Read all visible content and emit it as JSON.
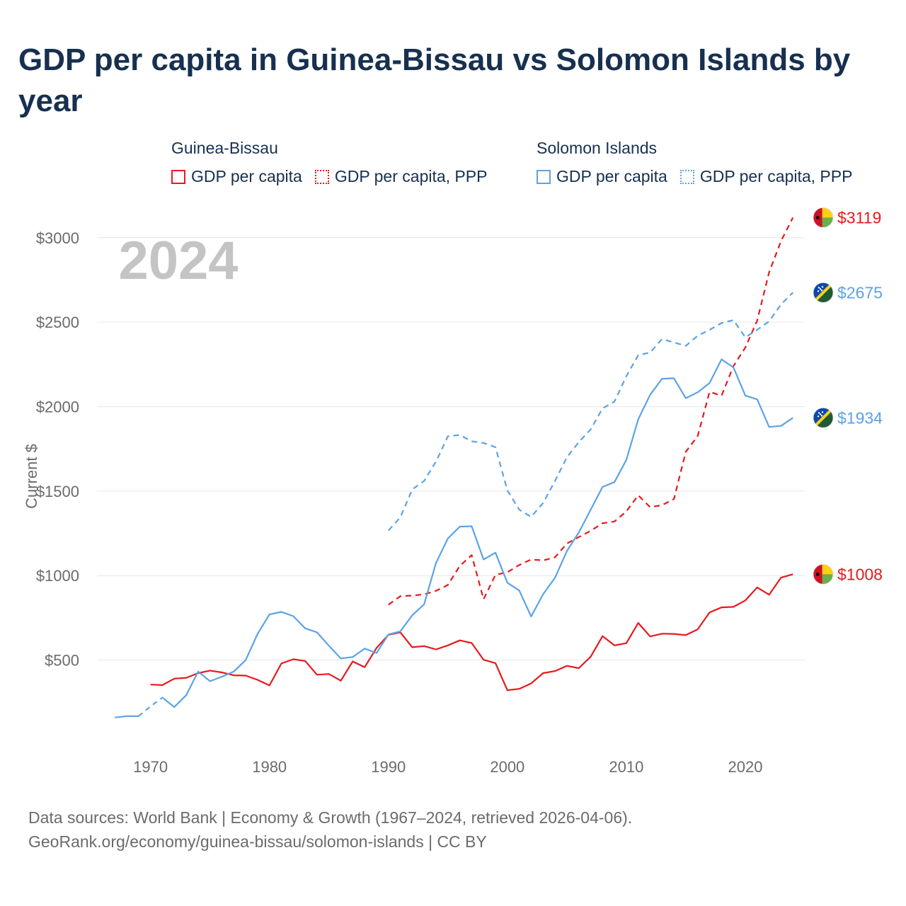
{
  "title": "GDP per capita in Guinea-Bissau vs Solomon Islands by year",
  "legend": [
    {
      "group": "Guinea-Bissau",
      "items": [
        {
          "label": "GDP per capita",
          "style": "solid",
          "color": "#e8191c"
        },
        {
          "label": "GDP per capita, PPP",
          "style": "dotted",
          "color": "#e8191c"
        }
      ]
    },
    {
      "group": "Solomon Islands",
      "items": [
        {
          "label": "GDP per capita",
          "style": "solid",
          "color": "#5ba3e6"
        },
        {
          "label": "GDP per capita, PPP",
          "style": "dotted",
          "color": "#5ba3e6"
        }
      ]
    }
  ],
  "year_label": "2024",
  "sources": {
    "line1": "Data sources: World Bank | Economy & Growth (1967–2024, retrieved 2026-04-06).",
    "line2": "GeoRank.org/economy/guinea-bissau/solomon-islands | CC BY"
  },
  "chart_data": {
    "type": "line",
    "ylabel": "Current $",
    "xlim": [
      1965.5,
      2025
    ],
    "ylim": [
      50,
      3150
    ],
    "yticks": [
      500,
      1000,
      1500,
      2000,
      2500,
      3000
    ],
    "ytick_labels": [
      "$500",
      "$1000",
      "$1500",
      "$2000",
      "$2500",
      "$3000"
    ],
    "xticks": [
      1970,
      1980,
      1990,
      2000,
      2010,
      2020
    ],
    "xtick_labels": [
      "1970",
      "1980",
      "1990",
      "2000",
      "2010",
      "2020"
    ],
    "grid": true,
    "series": [
      {
        "name": "Guinea-Bissau GDP per capita",
        "country": "Guinea-Bissau",
        "color": "#e8191c",
        "dash": "solid",
        "end_label": "$1008",
        "x": [
          1970,
          1971,
          1972,
          1973,
          1974,
          1975,
          1976,
          1977,
          1978,
          1979,
          1980,
          1981,
          1982,
          1983,
          1984,
          1985,
          1986,
          1987,
          1988,
          1989,
          1990,
          1991,
          1992,
          1993,
          1994,
          1995,
          1996,
          1997,
          1998,
          1999,
          2000,
          2001,
          2002,
          2003,
          2004,
          2005,
          2006,
          2007,
          2008,
          2009,
          2010,
          2011,
          2012,
          2013,
          2014,
          2015,
          2016,
          2017,
          2018,
          2019,
          2020,
          2021,
          2022,
          2023,
          2024
        ],
        "values": [
          355,
          352,
          390,
          395,
          423,
          438,
          427,
          410,
          408,
          383,
          350,
          480,
          505,
          495,
          413,
          418,
          378,
          492,
          458,
          572,
          650,
          664,
          576,
          583,
          563,
          587,
          617,
          601,
          502,
          482,
          322,
          330,
          362,
          423,
          435,
          466,
          452,
          520,
          642,
          587,
          600,
          720,
          640,
          656,
          655,
          648,
          682,
          782,
          812,
          815,
          853,
          930,
          887,
          988,
          1008
        ]
      },
      {
        "name": "Guinea-Bissau GDP per capita, PPP",
        "country": "Guinea-Bissau",
        "color": "#e8191c",
        "dash": "dashed",
        "end_label": "$3119",
        "x": [
          1990,
          1991,
          1992,
          1993,
          1994,
          1995,
          1996,
          1997,
          1998,
          1999,
          2000,
          2001,
          2002,
          2003,
          2004,
          2005,
          2006,
          2007,
          2008,
          2009,
          2010,
          2011,
          2012,
          2013,
          2014,
          2015,
          2016,
          2017,
          2018,
          2019,
          2020,
          2021,
          2022,
          2023,
          2024
        ],
        "values": [
          828,
          878,
          882,
          889,
          910,
          945,
          1058,
          1121,
          860,
          1005,
          1020,
          1063,
          1095,
          1090,
          1108,
          1190,
          1228,
          1265,
          1310,
          1320,
          1380,
          1475,
          1405,
          1417,
          1453,
          1733,
          1826,
          2088,
          2065,
          2240,
          2350,
          2510,
          2795,
          2980,
          3119
        ]
      },
      {
        "name": "Solomon Islands GDP per capita",
        "country": "Solomon Islands",
        "color": "#5ba3e6",
        "dash": "solid",
        "end_label": "$1934",
        "x": [
          1967,
          1968,
          1969,
          1970,
          1971,
          1972,
          1973,
          1974,
          1975,
          1976,
          1977,
          1978,
          1979,
          1980,
          1981,
          1982,
          1983,
          1984,
          1985,
          1986,
          1987,
          1988,
          1989,
          1990,
          1991,
          1992,
          1993,
          1994,
          1995,
          1996,
          1997,
          1998,
          1999,
          2000,
          2001,
          2002,
          2003,
          2004,
          2005,
          2006,
          2007,
          2008,
          2009,
          2010,
          2011,
          2012,
          2013,
          2014,
          2015,
          2016,
          2017,
          2018,
          2019,
          2020,
          2021,
          2022,
          2023,
          2024
        ],
        "values": [
          160,
          168,
          168,
          226,
          278,
          222,
          292,
          432,
          375,
          402,
          432,
          500,
          655,
          770,
          785,
          760,
          688,
          664,
          585,
          510,
          518,
          568,
          542,
          652,
          670,
          765,
          830,
          1075,
          1220,
          1290,
          1292,
          1095,
          1136,
          958,
          912,
          758,
          890,
          987,
          1145,
          1255,
          1390,
          1525,
          1553,
          1685,
          1925,
          2070,
          2165,
          2168,
          2050,
          2085,
          2140,
          2280,
          2232,
          2066,
          2043,
          1880,
          1886,
          1934
        ]
      },
      {
        "name": "Solomon Islands GDP per capita, PPP",
        "country": "Solomon Islands",
        "color": "#5ba3e6",
        "dash": "dashed",
        "end_label": "$2675",
        "x": [
          1990,
          1991,
          1992,
          1993,
          1994,
          1995,
          1996,
          1997,
          1998,
          1999,
          2000,
          2001,
          2002,
          2003,
          2004,
          2005,
          2006,
          2007,
          2008,
          2009,
          2010,
          2011,
          2012,
          2013,
          2014,
          2015,
          2016,
          2017,
          2018,
          2019,
          2020,
          2021,
          2022,
          2023,
          2024
        ],
        "values": [
          1267,
          1345,
          1510,
          1560,
          1675,
          1825,
          1832,
          1795,
          1785,
          1760,
          1505,
          1390,
          1348,
          1430,
          1560,
          1700,
          1790,
          1865,
          1990,
          2030,
          2180,
          2305,
          2320,
          2400,
          2380,
          2360,
          2420,
          2455,
          2495,
          2512,
          2410,
          2455,
          2505,
          2605,
          2675
        ]
      }
    ]
  }
}
